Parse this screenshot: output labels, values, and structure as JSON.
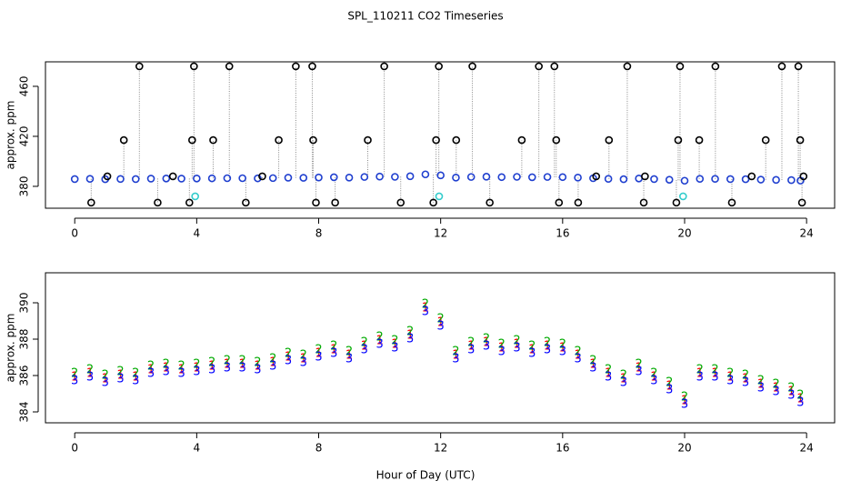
{
  "chart_data": [
    {
      "type": "scatter",
      "title": "SPL_110211  CO2 Timeseries",
      "ylabel": "approx. ppm",
      "xlim": [
        -0.96,
        24.92
      ],
      "ylim": [
        362.5,
        479.6
      ],
      "xticks": [
        0,
        4,
        8,
        12,
        16,
        20,
        24
      ],
      "yticks": [
        380,
        420,
        460
      ],
      "series": [
        {
          "color": "#1f3fcf",
          "x": [
            0,
            0.5,
            1,
            1.5,
            2,
            2.5,
            3,
            3.5,
            4,
            4.5,
            5,
            5.5,
            6,
            6.5,
            7,
            7.5,
            8,
            8.5,
            9,
            9.5,
            10,
            10.5,
            11,
            11.5,
            12,
            12.5,
            13,
            13.5,
            14,
            14.5,
            15,
            15.5,
            16,
            16.5,
            17,
            17.5,
            18,
            18.5,
            19,
            19.5,
            20,
            20.5,
            21,
            21.5,
            22,
            22.5,
            23,
            23.5,
            23.8
          ],
          "values": [
            385.8,
            386.0,
            385.7,
            385.9,
            385.8,
            386.2,
            386.3,
            386.2,
            386.3,
            386.4,
            386.5,
            386.5,
            386.4,
            386.6,
            386.9,
            386.8,
            387.1,
            387.3,
            387.0,
            387.5,
            387.8,
            387.6,
            388.1,
            389.6,
            388.8,
            387.0,
            387.5,
            387.7,
            387.4,
            387.6,
            387.3,
            387.5,
            387.4,
            387.0,
            386.5,
            386.0,
            385.7,
            386.3,
            385.8,
            385.3,
            384.5,
            386.0,
            386.0,
            385.8,
            385.7,
            385.4,
            385.2,
            385.0,
            384.6
          ]
        },
        {
          "color": "#000000",
          "x": [
            2.12,
            3.91,
            5.07,
            7.25,
            7.79,
            10.15,
            11.94,
            13.04,
            15.22,
            15.73,
            18.12,
            19.85,
            21.01,
            23.19,
            23.73,
            1.61,
            3.85,
            4.54,
            6.69,
            7.82,
            9.61,
            11.85,
            12.51,
            14.66,
            15.79,
            17.52,
            19.79,
            20.48,
            22.66,
            23.79,
            0.54,
            2.72,
            3.76,
            5.61,
            7.91,
            8.54,
            10.69,
            11.76,
            13.61,
            15.88,
            16.51,
            18.66,
            19.73,
            21.55,
            23.85,
            1.07,
            3.22,
            6.15,
            17.1,
            18.7,
            22.2,
            23.9
          ],
          "values": [
            476,
            476,
            476,
            476,
            476,
            476,
            476,
            476,
            476,
            476,
            476,
            476,
            476,
            476,
            476,
            417,
            417,
            417,
            417,
            417,
            417,
            417,
            417,
            417,
            417,
            417,
            417,
            417,
            417,
            417,
            367,
            367,
            367,
            367,
            367,
            367,
            367,
            367,
            367,
            367,
            367,
            367,
            367,
            367,
            367,
            388,
            388,
            388,
            388,
            388,
            388,
            388
          ]
        },
        {
          "color": "#33cccc",
          "x": [
            3.95,
            11.95,
            19.95
          ],
          "values": [
            372,
            372,
            372
          ]
        }
      ]
    },
    {
      "type": "scatter",
      "ylabel": "approx. ppm",
      "xlabel": "Hour of Day (UTC)",
      "xlim": [
        -0.96,
        24.92
      ],
      "ylim": [
        383.4,
        391.65
      ],
      "xticks": [
        0,
        4,
        8,
        12,
        16,
        20,
        24
      ],
      "yticks": [
        384,
        386,
        388,
        390
      ],
      "x": [
        0,
        0.5,
        1,
        1.5,
        2,
        2.5,
        3,
        3.5,
        4,
        4.5,
        5,
        5.5,
        6,
        6.5,
        7,
        7.5,
        8,
        8.5,
        9,
        9.5,
        10,
        10.5,
        11,
        11.5,
        12,
        12.5,
        13,
        13.5,
        14,
        14.5,
        15,
        15.5,
        16,
        16.5,
        17,
        17.5,
        18,
        18.5,
        19,
        19.5,
        20,
        20.5,
        21,
        21.5,
        22,
        22.5,
        23,
        23.5,
        23.8
      ],
      "series": [
        {
          "color": "#ff0000",
          "symbol": "1",
          "values": [
            385.9,
            386.1,
            385.8,
            386.0,
            385.9,
            386.3,
            386.4,
            386.3,
            386.4,
            386.5,
            386.6,
            386.6,
            386.5,
            386.7,
            387.0,
            386.9,
            387.2,
            387.4,
            387.1,
            387.6,
            387.9,
            387.7,
            388.2,
            389.7,
            388.9,
            387.1,
            387.6,
            387.8,
            387.5,
            387.7,
            387.4,
            387.6,
            387.5,
            387.1,
            386.6,
            386.1,
            385.8,
            386.4,
            385.9,
            385.4,
            384.6,
            386.1,
            386.1,
            385.9,
            385.8,
            385.5,
            385.3,
            385.1,
            384.7
          ]
        },
        {
          "color": "#00aa00",
          "symbol": "2",
          "values": [
            386.1,
            386.3,
            386.0,
            386.2,
            386.1,
            386.5,
            386.6,
            386.5,
            386.6,
            386.7,
            386.8,
            386.8,
            386.7,
            386.9,
            387.2,
            387.1,
            387.4,
            387.6,
            387.3,
            387.8,
            388.1,
            387.9,
            388.4,
            389.9,
            389.1,
            387.3,
            387.8,
            388.0,
            387.7,
            387.9,
            387.6,
            387.8,
            387.7,
            387.3,
            386.8,
            386.3,
            386.0,
            386.6,
            386.1,
            385.6,
            384.8,
            386.3,
            386.3,
            386.1,
            386.0,
            385.7,
            385.5,
            385.3,
            384.9
          ]
        },
        {
          "color": "#0000ff",
          "symbol": "3",
          "values": [
            385.7,
            385.9,
            385.6,
            385.8,
            385.7,
            386.1,
            386.2,
            386.1,
            386.2,
            386.3,
            386.4,
            386.4,
            386.3,
            386.5,
            386.8,
            386.7,
            387.0,
            387.2,
            386.9,
            387.4,
            387.7,
            387.5,
            388.0,
            389.5,
            388.7,
            386.9,
            387.4,
            387.6,
            387.3,
            387.5,
            387.2,
            387.4,
            387.3,
            386.9,
            386.4,
            385.9,
            385.6,
            386.2,
            385.7,
            385.2,
            384.4,
            385.9,
            385.9,
            385.7,
            385.6,
            385.3,
            385.1,
            384.9,
            384.5
          ]
        }
      ]
    }
  ]
}
